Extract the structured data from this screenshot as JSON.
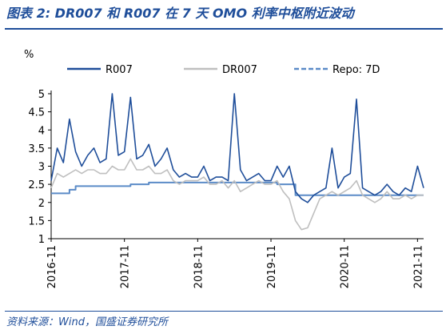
{
  "header": {
    "title": "图表 2: DR007 和 R007 在 7 天 OMO 利率中枢附近波动"
  },
  "footer": {
    "source": "资料来源：Wind，国盛证券研究所"
  },
  "chart_data": {
    "type": "line",
    "title": "",
    "xlabel": "",
    "ylabel": "%",
    "ylim": [
      1,
      5
    ],
    "yticks": [
      "1",
      "1.5",
      "2",
      "2.5",
      "3",
      "3.5",
      "4",
      "4.5",
      "5"
    ],
    "xticks": [
      "2016-11",
      "2017-11",
      "2018-11",
      "2019-11",
      "2020-11",
      "2021-11"
    ],
    "xrange": [
      "2016-11",
      "2021-12"
    ],
    "legend_position": "top",
    "grid": false,
    "colors": {
      "R007": "#1f4e9a",
      "DR007": "#bfbfbf",
      "Repo: 7D": "#5b8bc7"
    },
    "series": [
      {
        "name": "R007",
        "style": "solid",
        "x": [
          "2016-11",
          "2016-12",
          "2017-01",
          "2017-02",
          "2017-03",
          "2017-04",
          "2017-05",
          "2017-06",
          "2017-07",
          "2017-08",
          "2017-09",
          "2017-10",
          "2017-11",
          "2017-12",
          "2018-01",
          "2018-02",
          "2018-03",
          "2018-04",
          "2018-05",
          "2018-06",
          "2018-07",
          "2018-08",
          "2018-09",
          "2018-10",
          "2018-11",
          "2018-12",
          "2019-01",
          "2019-02",
          "2019-03",
          "2019-04",
          "2019-05",
          "2019-06",
          "2019-07",
          "2019-08",
          "2019-09",
          "2019-10",
          "2019-11",
          "2019-12",
          "2020-01",
          "2020-02",
          "2020-03",
          "2020-04",
          "2020-05",
          "2020-06",
          "2020-07",
          "2020-08",
          "2020-09",
          "2020-10",
          "2020-11",
          "2020-12",
          "2021-01",
          "2021-02",
          "2021-03",
          "2021-04",
          "2021-05",
          "2021-06",
          "2021-07",
          "2021-08",
          "2021-09",
          "2021-10",
          "2021-11",
          "2021-12"
        ],
        "values": [
          2.6,
          3.5,
          3.1,
          4.3,
          3.4,
          3.0,
          3.3,
          3.5,
          3.1,
          3.2,
          5.0,
          3.3,
          3.4,
          4.9,
          3.2,
          3.3,
          3.6,
          3.0,
          3.2,
          3.5,
          2.9,
          2.7,
          2.8,
          2.7,
          2.7,
          3.0,
          2.6,
          2.7,
          2.7,
          2.6,
          5.0,
          2.9,
          2.6,
          2.7,
          2.8,
          2.6,
          2.6,
          3.0,
          2.7,
          3.0,
          2.3,
          2.1,
          2.0,
          2.2,
          2.3,
          2.4,
          3.5,
          2.4,
          2.7,
          2.8,
          4.85,
          2.4,
          2.3,
          2.2,
          2.3,
          2.5,
          2.3,
          2.2,
          2.4,
          2.3,
          3.0,
          2.4
        ]
      },
      {
        "name": "DR007",
        "style": "solid",
        "x": [
          "2016-11",
          "2016-12",
          "2017-01",
          "2017-02",
          "2017-03",
          "2017-04",
          "2017-05",
          "2017-06",
          "2017-07",
          "2017-08",
          "2017-09",
          "2017-10",
          "2017-11",
          "2017-12",
          "2018-01",
          "2018-02",
          "2018-03",
          "2018-04",
          "2018-05",
          "2018-06",
          "2018-07",
          "2018-08",
          "2018-09",
          "2018-10",
          "2018-11",
          "2018-12",
          "2019-01",
          "2019-02",
          "2019-03",
          "2019-04",
          "2019-05",
          "2019-06",
          "2019-07",
          "2019-08",
          "2019-09",
          "2019-10",
          "2019-11",
          "2019-12",
          "2020-01",
          "2020-02",
          "2020-03",
          "2020-04",
          "2020-05",
          "2020-06",
          "2020-07",
          "2020-08",
          "2020-09",
          "2020-10",
          "2020-11",
          "2020-12",
          "2021-01",
          "2021-02",
          "2021-03",
          "2021-04",
          "2021-05",
          "2021-06",
          "2021-07",
          "2021-08",
          "2021-09",
          "2021-10",
          "2021-11",
          "2021-12"
        ],
        "values": [
          2.4,
          2.8,
          2.7,
          2.8,
          2.9,
          2.8,
          2.9,
          2.9,
          2.8,
          2.8,
          3.0,
          2.9,
          2.9,
          3.2,
          2.9,
          2.9,
          3.0,
          2.8,
          2.8,
          2.9,
          2.6,
          2.5,
          2.6,
          2.6,
          2.6,
          2.7,
          2.5,
          2.5,
          2.6,
          2.4,
          2.6,
          2.3,
          2.4,
          2.5,
          2.6,
          2.5,
          2.5,
          2.6,
          2.3,
          2.1,
          1.5,
          1.25,
          1.3,
          1.7,
          2.1,
          2.2,
          2.3,
          2.2,
          2.3,
          2.4,
          2.6,
          2.2,
          2.1,
          2.0,
          2.1,
          2.3,
          2.1,
          2.1,
          2.2,
          2.1,
          2.2,
          2.2
        ]
      },
      {
        "name": "Repo: 7D",
        "style": "dashed",
        "x": [
          "2016-11",
          "2017-01",
          "2017-02",
          "2017-03",
          "2017-12",
          "2018-03",
          "2019-11",
          "2019-12",
          "2020-03",
          "2021-12"
        ],
        "values": [
          2.25,
          2.25,
          2.35,
          2.45,
          2.5,
          2.55,
          2.55,
          2.5,
          2.2,
          2.2
        ]
      }
    ]
  }
}
